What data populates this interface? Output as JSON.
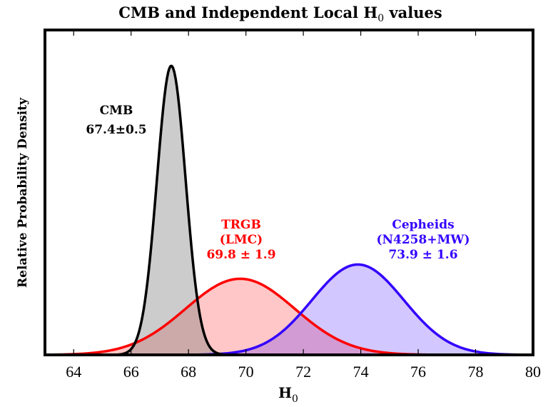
{
  "chart_data": {
    "type": "area",
    "title": "CMB and Independent Local H",
    "title_sub": "0",
    "title_suffix": " values",
    "xlabel": "H",
    "xlabel_sub": "0",
    "ylabel": "Relative Probability Density",
    "xlim": [
      63,
      80
    ],
    "ylim": [
      0,
      1.0
    ],
    "x_ticks": [
      64,
      66,
      68,
      70,
      72,
      74,
      76,
      78,
      80
    ],
    "x_tick_labels": [
      "64",
      "66",
      "68",
      "70",
      "72",
      "74",
      "76",
      "78",
      "80"
    ],
    "y_ticks_shown": false,
    "grid": false,
    "legend": "none",
    "series": [
      {
        "name": "CMB",
        "distribution": "gaussian",
        "mean": 67.4,
        "sigma": 0.5,
        "line_color": "#000000",
        "fill_color": "#808080",
        "fill_opacity": 0.4,
        "label_lines": [
          "CMB",
          "67.4±0.5"
        ]
      },
      {
        "name": "TRGB (LMC)",
        "distribution": "gaussian",
        "mean": 69.8,
        "sigma": 1.9,
        "line_color": "#ff0000",
        "fill_color": "#ff0000",
        "fill_opacity": 0.22,
        "label_lines": [
          "TRGB",
          "(LMC)",
          "69.8 ± 1.9"
        ]
      },
      {
        "name": "Cepheids (N4258+MW)",
        "distribution": "gaussian",
        "mean": 73.9,
        "sigma": 1.6,
        "line_color": "#3300ff",
        "fill_color": "#3300ff",
        "fill_opacity": 0.22,
        "label_lines": [
          "Cepheids",
          "(N4258+MW)",
          "73.9 ± 1.6"
        ]
      }
    ],
    "normalization": "peak height proportional to 1/sigma (CMB peak ≈ 0.9 of y-range)"
  }
}
